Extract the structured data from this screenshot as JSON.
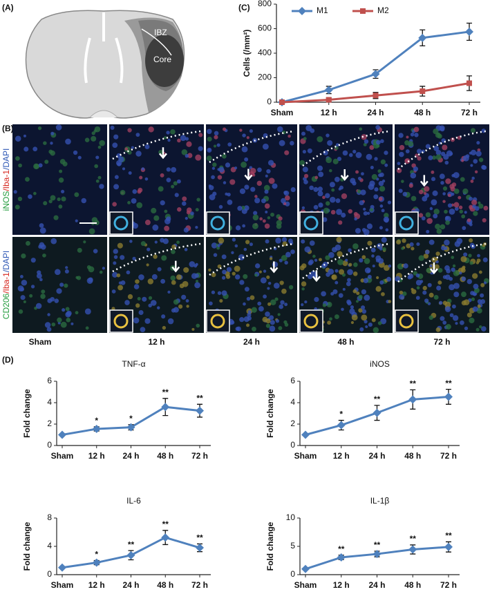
{
  "panel_labels": [
    "(A)",
    "(B)",
    "(C)",
    "(D)"
  ],
  "diagram": {
    "labels": [
      "IBZ",
      "Core"
    ]
  },
  "micrographs": {
    "row_labels": [
      [
        {
          "text": "iNOS",
          "color": "#1f9a3a"
        },
        {
          "text": "/Iba-1",
          "color": "#d7261e"
        },
        {
          "text": "/DAPI",
          "color": "#2d57b5"
        }
      ],
      [
        {
          "text": "CD206",
          "color": "#1f9a3a"
        },
        {
          "text": "/Iba-1",
          "color": "#d7261e"
        },
        {
          "text": "/DAPI",
          "color": "#2d57b5"
        }
      ]
    ],
    "column_labels": [
      "Sham",
      "12 h",
      "24 h",
      "48 h",
      "72 h"
    ]
  },
  "chart_data": [
    {
      "type": "line",
      "ylabel": "Cells (/mm²)",
      "categories": [
        "Sham",
        "12 h",
        "24 h",
        "48 h",
        "72 h"
      ],
      "ylim": [
        0,
        800
      ],
      "yticks": [
        0,
        200,
        400,
        600,
        800
      ],
      "series": [
        {
          "name": "M1",
          "color": "#4f81bd",
          "marker": "diamond",
          "values": [
            0,
            100,
            230,
            525,
            575
          ],
          "errors": [
            5,
            30,
            35,
            65,
            70
          ]
        },
        {
          "name": "M2",
          "color": "#c0504d",
          "marker": "square",
          "values": [
            0,
            20,
            55,
            90,
            155
          ],
          "errors": [
            5,
            15,
            25,
            40,
            60
          ]
        }
      ]
    },
    {
      "type": "line",
      "title": "TNF-α",
      "ylabel": "Fold change",
      "categories": [
        "Sham",
        "12 h",
        "24 h",
        "48 h",
        "72 h"
      ],
      "ylim": [
        0,
        6
      ],
      "yticks": [
        0,
        2,
        4,
        6
      ],
      "series": [
        {
          "color": "#4f81bd",
          "marker": "diamond",
          "values": [
            1,
            1.55,
            1.7,
            3.6,
            3.25
          ],
          "errors": [
            0.05,
            0.2,
            0.25,
            0.8,
            0.6
          ],
          "significance": [
            null,
            "*",
            "*",
            "**",
            "**"
          ]
        }
      ]
    },
    {
      "type": "line",
      "title": "iNOS",
      "ylabel": "Fold change",
      "categories": [
        "Sham",
        "12 h",
        "24 h",
        "48 h",
        "72 h"
      ],
      "ylim": [
        0,
        6
      ],
      "yticks": [
        0,
        2,
        4,
        6
      ],
      "series": [
        {
          "color": "#4f81bd",
          "marker": "diamond",
          "values": [
            1,
            1.9,
            3.05,
            4.3,
            4.55
          ],
          "errors": [
            0.05,
            0.45,
            0.7,
            0.9,
            0.7
          ],
          "significance": [
            null,
            "*",
            "**",
            "**",
            "**"
          ]
        }
      ]
    },
    {
      "type": "line",
      "title": "IL-6",
      "ylabel": "Fold change",
      "categories": [
        "Sham",
        "12 h",
        "24 h",
        "48 h",
        "72 h"
      ],
      "ylim": [
        0,
        8
      ],
      "yticks": [
        0,
        4,
        8
      ],
      "series": [
        {
          "color": "#4f81bd",
          "marker": "diamond",
          "values": [
            1,
            1.7,
            2.75,
            5.25,
            3.8
          ],
          "errors": [
            0.05,
            0.3,
            0.65,
            1.0,
            0.55
          ],
          "significance": [
            null,
            "*",
            "**",
            "**",
            "**"
          ]
        }
      ]
    },
    {
      "type": "line",
      "title": "IL-1β",
      "ylabel": "Fold change",
      "categories": [
        "Sham",
        "12 h",
        "24 h",
        "48 h",
        "72 h"
      ],
      "ylim": [
        0,
        10
      ],
      "yticks": [
        0,
        5,
        10
      ],
      "series": [
        {
          "color": "#4f81bd",
          "marker": "diamond",
          "values": [
            1,
            3.05,
            3.65,
            4.45,
            4.9
          ],
          "errors": [
            0.05,
            0.4,
            0.5,
            0.8,
            0.9
          ],
          "significance": [
            null,
            "**",
            "**",
            "**",
            "**"
          ]
        }
      ]
    }
  ]
}
